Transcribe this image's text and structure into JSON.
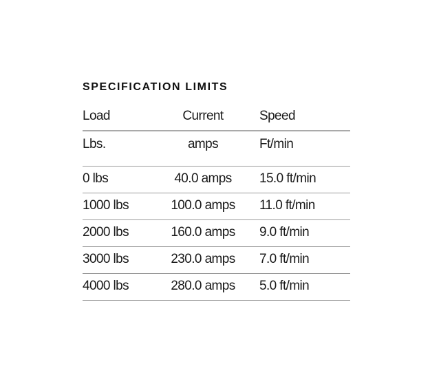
{
  "title": "SPECIFICATION LIMITS",
  "table": {
    "headers": [
      "Load",
      "Current",
      "Speed"
    ],
    "units": [
      "Lbs.",
      "amps",
      "Ft/min"
    ],
    "rows": [
      [
        "0 lbs",
        "40.0 amps",
        "15.0 ft/min"
      ],
      [
        "1000 lbs",
        "100.0 amps",
        "11.0 ft/min"
      ],
      [
        "2000 lbs",
        "160.0 amps",
        "9.0 ft/min"
      ],
      [
        "3000 lbs",
        "230.0 amps",
        "7.0 ft/min"
      ],
      [
        "4000 lbs",
        "280.0 amps",
        "5.0 ft/min"
      ]
    ]
  }
}
